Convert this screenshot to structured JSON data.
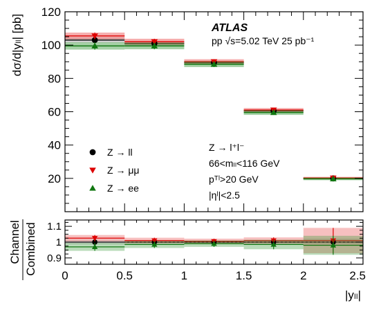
{
  "chart_data": {
    "type": "scatter",
    "experiment": "ATLAS",
    "collision_info": "pp  √s=5.02 TeV  25 pb⁻¹",
    "xlabel": "|yₗₗ|",
    "ylabel": "dσ/d|yₗₗ| [pb]",
    "ratio_ylabel_top": "Channel",
    "ratio_ylabel_bottom": "Combined",
    "xlim": [
      0,
      2.5
    ],
    "ylim": [
      0,
      120
    ],
    "ratio_ylim": [
      0.86,
      1.14
    ],
    "x_ticks": [
      "0",
      "0.5",
      "1",
      "1.5",
      "2",
      "2.5"
    ],
    "y_ticks": [
      "20",
      "40",
      "60",
      "80",
      "100",
      "120"
    ],
    "ratio_y_ticks": [
      "0.9",
      "1",
      "1.1"
    ],
    "bin_edges": [
      0,
      0.5,
      1.0,
      1.5,
      2.0,
      2.5
    ],
    "bin_centers": [
      0.25,
      0.75,
      1.25,
      1.75,
      2.25
    ],
    "selection": {
      "line1": "Z → l⁺l⁻",
      "line2": "66<mₗₗ<116 GeV",
      "line3": "pᵀˡ>20 GeV",
      "line4": "|ηˡ|<2.5"
    },
    "series": [
      {
        "name": "Z → ll",
        "marker": "circle",
        "color": "#000000",
        "band_color": "#9a9a9a",
        "values": [
          103.0,
          101.0,
          89.5,
          60.5,
          20.0
        ],
        "errors": [
          1.5,
          1.2,
          1.0,
          0.8,
          0.5
        ],
        "ratio": [
          1.0,
          1.0,
          1.0,
          1.0,
          1.0
        ],
        "ratio_err": [
          0.015,
          0.012,
          0.011,
          0.013,
          0.022
        ]
      },
      {
        "name": "Z → μμ",
        "marker": "triangle-down",
        "color": "#dd0000",
        "band_color": "#e84a4a",
        "values": [
          105.5,
          102.0,
          90.0,
          61.0,
          20.2
        ],
        "errors": [
          2.0,
          1.8,
          1.5,
          1.2,
          0.7
        ],
        "ratio": [
          1.025,
          1.01,
          1.005,
          1.01,
          1.01
        ],
        "ratio_err": [
          0.02,
          0.018,
          0.017,
          0.02,
          0.08
        ]
      },
      {
        "name": "Z → ee",
        "marker": "triangle-up",
        "color": "#117711",
        "band_color": "#3a9a3a",
        "values": [
          99.5,
          99.5,
          88.5,
          59.5,
          19.7
        ],
        "errors": [
          2.2,
          2.0,
          1.7,
          1.4,
          0.8
        ],
        "ratio": [
          0.97,
          0.985,
          0.99,
          0.985,
          0.98
        ],
        "ratio_err": [
          0.025,
          0.022,
          0.02,
          0.03,
          0.06
        ]
      }
    ],
    "legend_position": "bottom-left",
    "grid": false
  }
}
